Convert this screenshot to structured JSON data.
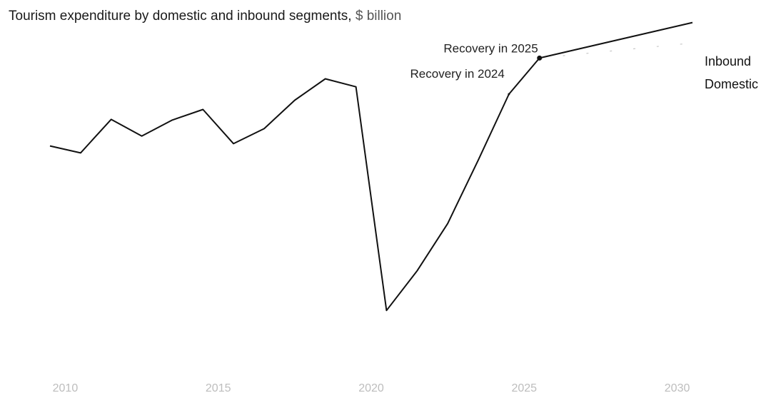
{
  "chart_data": {
    "type": "line",
    "title": "Tourism expenditure by domestic and inbound segments,",
    "title_unit": "$ billion",
    "x_ticks": [
      "2010",
      "2015",
      "2020",
      "2025",
      "2030"
    ],
    "xlim": [
      2009.5,
      2030.5
    ],
    "ylim": [
      0,
      100
    ],
    "grid": false,
    "legend": "right",
    "series": [
      {
        "name": "Inbound",
        "x": [
          2009.5,
          2010.5,
          2011.5,
          2012.5,
          2013.5,
          2014.5,
          2015.5,
          2016.5,
          2017.5,
          2018.5,
          2019.5,
          2020.5,
          2021.5,
          2022.5,
          2023.5,
          2024.5,
          2025.5,
          2030.5
        ],
        "values": [
          65.5,
          63.3,
          73.8,
          68.6,
          73.6,
          76.9,
          66.2,
          70.9,
          79.8,
          86.5,
          84.0,
          14.0,
          26.4,
          41.2,
          61.1,
          81.7,
          93.0,
          104.1
        ]
      },
      {
        "name": "Domestic",
        "x": [
          2025.5,
          2030.5
        ],
        "values": [
          93.0,
          97.7
        ]
      }
    ],
    "annotations": [
      {
        "text": "Recovery in 2025",
        "x": 2025.5
      },
      {
        "text": "Recovery in 2024",
        "x": 2024.5
      }
    ],
    "line_color": "#111111",
    "secondary_color": "#bdbdbd"
  }
}
